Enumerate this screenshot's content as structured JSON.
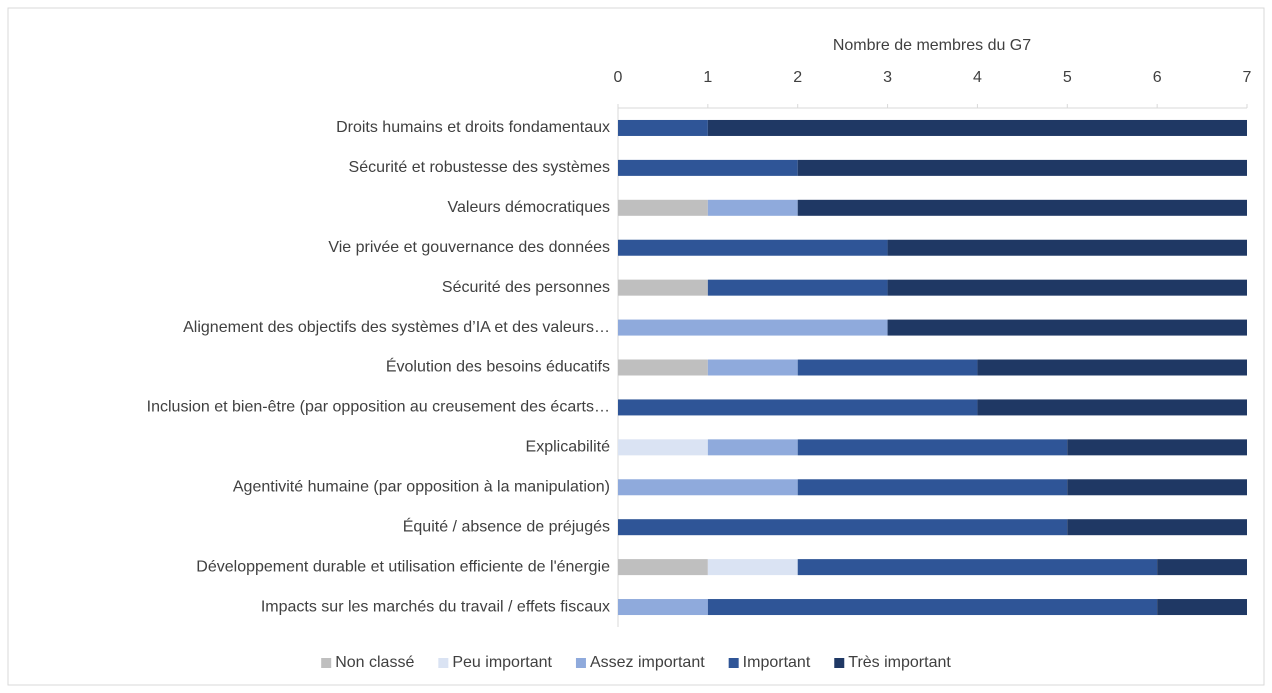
{
  "chart_data": {
    "type": "stacked_barh",
    "xlabel": "Nombre de membres du G7",
    "categories": [
      "Droits humains et droits fondamentaux",
      "Sécurité et robustesse des systèmes",
      "Valeurs démocratiques",
      "Vie privée et gouvernance des données",
      "Sécurité des personnes",
      "Alignement des objectifs des systèmes d’IA et des valeurs…",
      "Évolution des besoins éducatifs",
      "Inclusion et bien-être (par opposition au creusement des écarts…",
      "Explicabilité",
      "Agentivité humaine (par opposition à la manipulation)",
      "Équité / absence de préjugés",
      "Développement durable et utilisation efficiente de l'énergie",
      "Impacts sur les marchés du travail / effets fiscaux"
    ],
    "series": [
      {
        "name": "Non classé",
        "color": "#bfbfbf",
        "values": [
          0,
          0,
          1,
          0,
          1,
          0,
          1,
          0,
          0,
          0,
          0,
          1,
          0
        ]
      },
      {
        "name": "Peu important",
        "color": "#dae3f3",
        "values": [
          0,
          0,
          0,
          0,
          0,
          0,
          0,
          0,
          1,
          0,
          0,
          1,
          0
        ]
      },
      {
        "name": "Assez important",
        "color": "#8faadc",
        "values": [
          0,
          0,
          1,
          0,
          0,
          3,
          1,
          0,
          1,
          2,
          0,
          0,
          1
        ]
      },
      {
        "name": "Important",
        "color": "#2f5597",
        "values": [
          1,
          2,
          0,
          3,
          2,
          0,
          2,
          4,
          3,
          3,
          5,
          4,
          5
        ]
      },
      {
        "name": "Très important",
        "color": "#1f3864",
        "values": [
          6,
          5,
          5,
          4,
          4,
          4,
          3,
          3,
          2,
          2,
          2,
          1,
          1
        ]
      }
    ],
    "xlim": [
      0,
      7
    ],
    "xticks": [
      0,
      1,
      2,
      3,
      4,
      5,
      6,
      7
    ],
    "legend": "bottom"
  }
}
